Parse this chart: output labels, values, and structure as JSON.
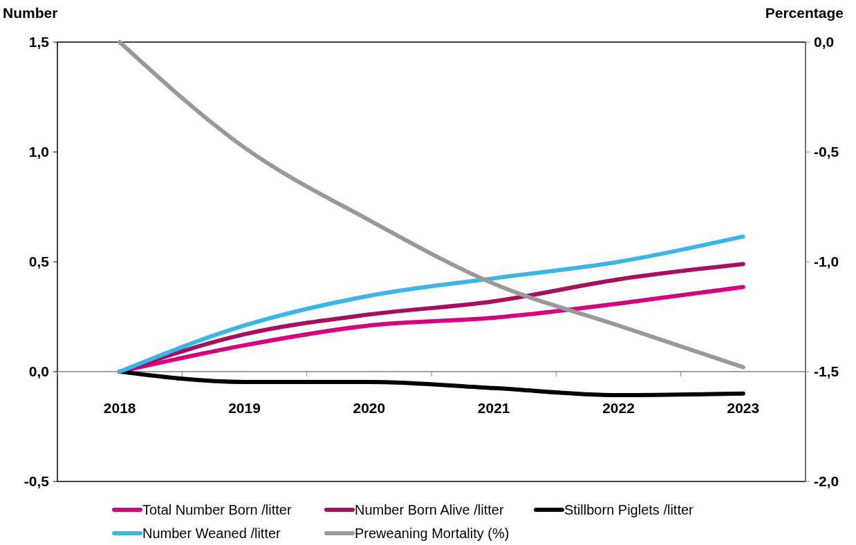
{
  "chart_data": {
    "type": "line",
    "ylabel": "Number",
    "y2label": "Percentage",
    "categories": [
      "2018",
      "2019",
      "2020",
      "2021",
      "2022",
      "2023"
    ],
    "series": [
      {
        "name": "Total Number Born /litter",
        "color": "#d6007e",
        "values": [
          0,
          0.12,
          0.21,
          0.245,
          0.31,
          0.385
        ]
      },
      {
        "name": "Number Born Alive /litter",
        "color": "#a50f5e",
        "values": [
          0,
          0.17,
          0.26,
          0.32,
          0.42,
          0.49
        ]
      },
      {
        "name": "Stillborn Piglets /litter",
        "color": "#000000",
        "values": [
          0,
          -0.047,
          -0.047,
          -0.075,
          -0.107,
          -0.1
        ]
      },
      {
        "name": "Number Weaned /litter",
        "color": "#3db4e6",
        "values": [
          0,
          0.21,
          0.345,
          0.425,
          0.5,
          0.615
        ]
      },
      {
        "name": "Preweaning Mortality (%)",
        "color": "#999999",
        "axis": "y2",
        "values": [
          0,
          -0.48,
          -0.81,
          -1.1,
          -1.29,
          -1.48
        ]
      }
    ],
    "ylim": [
      -0.5,
      1.5
    ],
    "yticks": [
      {
        "value": -0.5,
        "label": "-0,5"
      },
      {
        "value": 0,
        "label": "0,0"
      },
      {
        "value": 0.5,
        "label": "0,5"
      },
      {
        "value": 1,
        "label": "1,0"
      },
      {
        "value": 1.5,
        "label": "1,5"
      }
    ],
    "y2lim": [
      -2,
      0
    ],
    "y2ticks": [
      {
        "value": -2,
        "label": "-2,0"
      },
      {
        "value": -1.5,
        "label": "-1,5"
      },
      {
        "value": -1,
        "label": "-1,0"
      },
      {
        "value": -0.5,
        "label": "-0,5"
      },
      {
        "value": 0,
        "label": "0,0"
      }
    ],
    "grid": false,
    "legend": "bottom",
    "marker": "none",
    "line_style": "solid"
  }
}
